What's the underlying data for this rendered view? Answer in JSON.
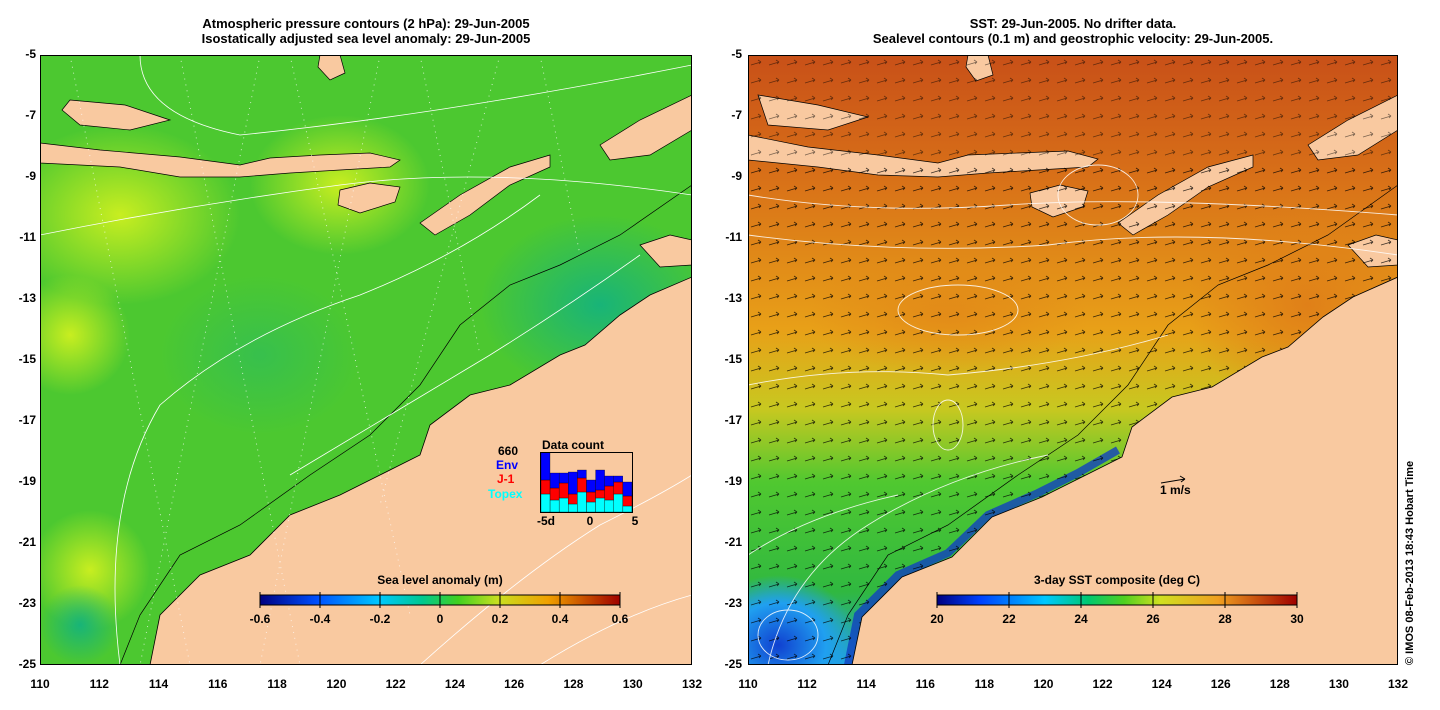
{
  "left_panel": {
    "title_line1": "Atmospheric pressure contours (2 hPa): 29-Jun-2005",
    "title_line2": "Isostatically adjusted sea level anomaly: 29-Jun-2005",
    "colorbar_title": "Sea level anomaly (m)",
    "colorbar_ticks": [
      "-0.6",
      "-0.4",
      "-0.2",
      "0",
      "0.2",
      "0.4",
      "0.6"
    ],
    "data_count": {
      "title": "Data count",
      "total": "660",
      "series": [
        "Env",
        "J-1",
        "Topex"
      ],
      "series_colors": [
        "#0000ff",
        "#ff0000",
        "#00ffff"
      ],
      "x_ticks": [
        "-5d",
        "0",
        "5"
      ]
    }
  },
  "right_panel": {
    "title_line1": "SST: 29-Jun-2005. No drifter data.",
    "title_line2": "Sealevel contours (0.1 m) and geostrophic velocity: 29-Jun-2005.",
    "colorbar_title": "3-day SST composite (deg C)",
    "colorbar_ticks": [
      "20",
      "22",
      "24",
      "26",
      "28",
      "30"
    ],
    "velocity_scale": "1 m/s"
  },
  "axes": {
    "y_ticks": [
      "-5",
      "-7",
      "-9",
      "-11",
      "-13",
      "-15",
      "-17",
      "-19",
      "-21",
      "-23",
      "-25"
    ],
    "x_ticks": [
      "110",
      "112",
      "114",
      "116",
      "118",
      "120",
      "122",
      "124",
      "126",
      "128",
      "130",
      "132"
    ]
  },
  "credit": "© IMOS 08-Feb-2013 18:43 Hobart Time",
  "colors": {
    "land": "#f9c9a0",
    "ocean_slope": "#22c06a",
    "ocean_shelf": "#55d020",
    "sst_warm": "#e8961e",
    "sst_hot": "#c8501a",
    "sst_cool": "#30c838"
  }
}
